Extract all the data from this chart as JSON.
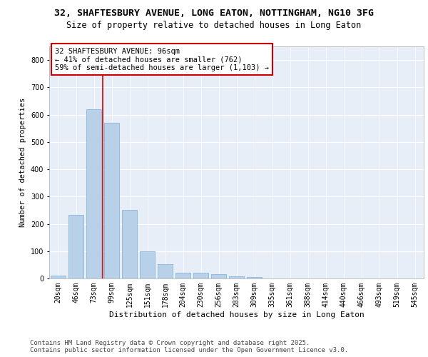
{
  "title1": "32, SHAFTESBURY AVENUE, LONG EATON, NOTTINGHAM, NG10 3FG",
  "title2": "Size of property relative to detached houses in Long Eaton",
  "xlabel": "Distribution of detached houses by size in Long Eaton",
  "ylabel": "Number of detached properties",
  "categories": [
    "20sqm",
    "46sqm",
    "73sqm",
    "99sqm",
    "125sqm",
    "151sqm",
    "178sqm",
    "204sqm",
    "230sqm",
    "256sqm",
    "283sqm",
    "309sqm",
    "335sqm",
    "361sqm",
    "388sqm",
    "414sqm",
    "440sqm",
    "466sqm",
    "493sqm",
    "519sqm",
    "545sqm"
  ],
  "values": [
    10,
    232,
    620,
    570,
    250,
    100,
    52,
    22,
    22,
    15,
    8,
    5,
    0,
    0,
    0,
    0,
    0,
    0,
    0,
    0,
    0
  ],
  "bar_color": "#b8d0e8",
  "bar_edge_color": "#7aafd4",
  "vline_color": "#cc0000",
  "vline_pos": 2.5,
  "annotation_text": "32 SHAFTESBURY AVENUE: 96sqm\n← 41% of detached houses are smaller (762)\n59% of semi-detached houses are larger (1,103) →",
  "annotation_box_color": "#ffffff",
  "annotation_border_color": "#cc0000",
  "ylim": [
    0,
    850
  ],
  "yticks": [
    0,
    100,
    200,
    300,
    400,
    500,
    600,
    700,
    800
  ],
  "bg_color": "#e8eef8",
  "grid_color": "#ffffff",
  "footer_text": "Contains HM Land Registry data © Crown copyright and database right 2025.\nContains public sector information licensed under the Open Government Licence v3.0.",
  "title1_fontsize": 9.5,
  "title2_fontsize": 8.5,
  "xlabel_fontsize": 8,
  "ylabel_fontsize": 7.5,
  "tick_fontsize": 7,
  "annotation_fontsize": 7.5,
  "footer_fontsize": 6.5
}
